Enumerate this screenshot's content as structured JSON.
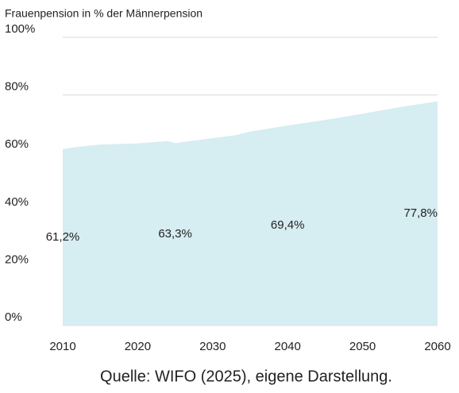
{
  "chart_data": {
    "type": "area",
    "title": "Frauenpension in % der Männerpension",
    "source": "Quelle: WIFO (2025), eigene Darstellung.",
    "x": [
      2010,
      2012,
      2015,
      2020,
      2024,
      2025,
      2030,
      2033,
      2035,
      2040,
      2045,
      2050,
      2055,
      2060
    ],
    "values": [
      61.2,
      62.0,
      62.8,
      63.2,
      64.0,
      63.3,
      65.0,
      66.0,
      67.3,
      69.4,
      71.3,
      73.5,
      75.8,
      77.8
    ],
    "value_labels": [
      "61,2%",
      null,
      null,
      null,
      null,
      "63,3%",
      null,
      null,
      null,
      "69,4%",
      null,
      null,
      null,
      "77,8%"
    ],
    "color": "#d6edf1",
    "xlim": [
      2010,
      2060
    ],
    "xticks": [
      2010,
      2020,
      2030,
      2040,
      2050,
      2060
    ],
    "ylim": [
      0,
      100
    ],
    "yticks": [
      {
        "value": 0,
        "label": "0%"
      },
      {
        "value": 20,
        "label": "20%"
      },
      {
        "value": 40,
        "label": "40%"
      },
      {
        "value": 60,
        "label": "60%"
      },
      {
        "value": 80,
        "label": "80%"
      },
      {
        "value": 100,
        "label": "100%"
      }
    ],
    "grid": true
  }
}
